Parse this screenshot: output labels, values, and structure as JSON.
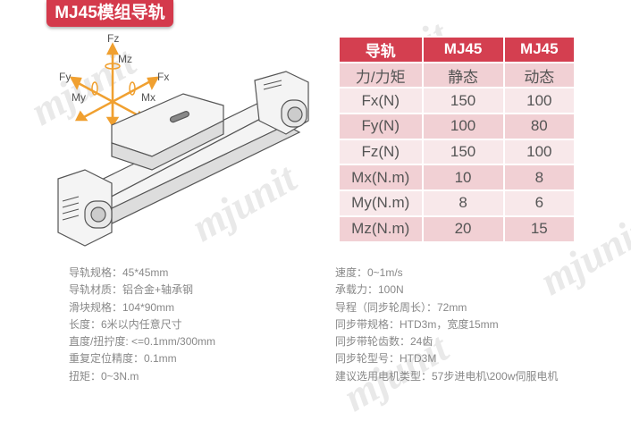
{
  "title": "MJ45模组导轨",
  "watermark": "mjunit",
  "axes": {
    "fz": "Fz",
    "mz": "Mz",
    "fy": "Fy",
    "fx": "Fx",
    "my": "My",
    "mx": "Mx"
  },
  "table": {
    "header": [
      "导轨",
      "MJ45",
      "MJ45"
    ],
    "rows": [
      [
        "力/力矩",
        "静态",
        "动态"
      ],
      [
        "Fx(N)",
        "150",
        "100"
      ],
      [
        "Fy(N)",
        "100",
        "80"
      ],
      [
        "Fz(N)",
        "150",
        "100"
      ],
      [
        "Mx(N.m)",
        "10",
        "8"
      ],
      [
        "My(N.m)",
        "8",
        "6"
      ],
      [
        "Mz(N.m)",
        "20",
        "15"
      ]
    ]
  },
  "specs_left": [
    "导轨规格：45*45mm",
    "导轨材质：铝合金+轴承钢",
    "滑块规格：104*90mm",
    "长度：6米以内任意尺寸",
    "直度/扭拧度: <=0.1mm/300mm",
    "重复定位精度：0.1mm",
    "扭矩：0~3N.m"
  ],
  "specs_right": [
    "速度：0~1m/s",
    "承载力：100N",
    "导程（同步轮周长）：72mm",
    "同步带规格：HTD3m，宽度15mm",
    "同步带轮齿数：24齿",
    "同步轮型号：HTD3M",
    "建议选用电机类型：57步进电机\\200w伺服电机"
  ],
  "colors": {
    "accent": "#d43a4c",
    "axis": "#f0a030"
  }
}
